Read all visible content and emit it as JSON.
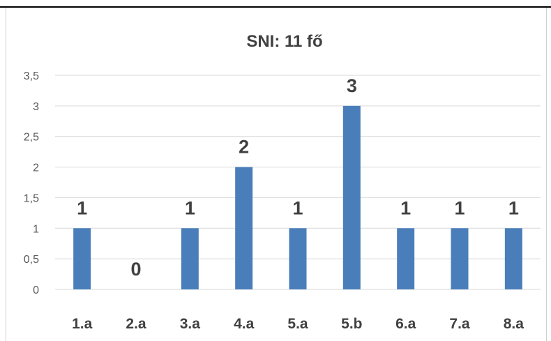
{
  "chart_data": {
    "type": "bar",
    "title": "SNI: 11 fő",
    "categories": [
      "1.a",
      "2.a",
      "3.a",
      "4.a",
      "5.a",
      "5.b",
      "6.a",
      "7.a",
      "8.a"
    ],
    "values": [
      1,
      0,
      1,
      2,
      1,
      3,
      1,
      1,
      1
    ],
    "data_labels": [
      "1",
      "0",
      "1",
      "2",
      "1",
      "3",
      "1",
      "1",
      "1"
    ],
    "yticks": [
      "0",
      "0,5",
      "1",
      "1,5",
      "2",
      "2,5",
      "3",
      "3,5"
    ],
    "ylim": [
      0,
      3.5
    ],
    "grid": true,
    "legend": "none",
    "xlabel": "",
    "ylabel": "",
    "bar_color": "#4a7ebb",
    "grid_color": "#d9d9d9",
    "text_color": "#404040"
  }
}
